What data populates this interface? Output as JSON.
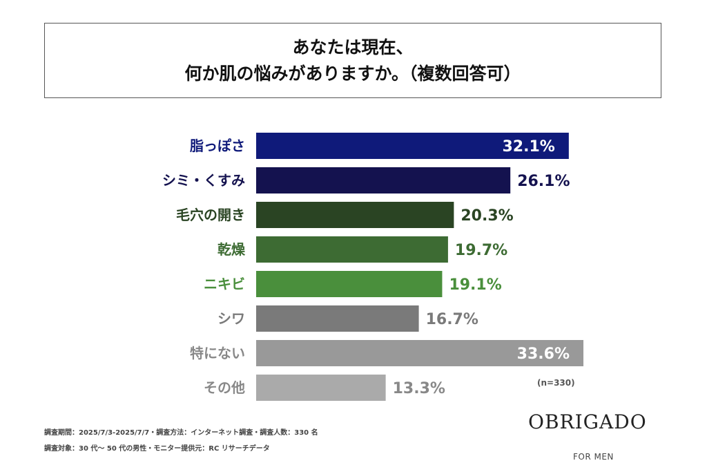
{
  "title": {
    "line1": "あなたは現在、",
    "line2": "何か肌の悩みがありますか。（複数回答可）"
  },
  "chart_data": {
    "type": "bar",
    "orientation": "horizontal",
    "categories": [
      "脂っぽさ",
      "シミ・くすみ",
      "毛穴の開き",
      "乾燥",
      "ニキビ",
      "シワ",
      "特にない",
      "その他"
    ],
    "values": [
      32.1,
      26.1,
      20.3,
      19.7,
      19.1,
      16.7,
      33.6,
      13.3
    ],
    "value_labels": [
      "32.1%",
      "26.1%",
      "20.3%",
      "19.7%",
      "19.1%",
      "16.7%",
      "33.6%",
      "13.3%"
    ],
    "bar_colors": [
      "#0f1a7a",
      "#14124f",
      "#2a4423",
      "#3d6b33",
      "#4a8f3c",
      "#7a7a7a",
      "#999999",
      "#aaaaaa"
    ],
    "label_colors": [
      "#0f1a7a",
      "#14124f",
      "#2a4423",
      "#3d6b33",
      "#4a8f3c",
      "#7a7a7a",
      "#888888",
      "#888888"
    ],
    "sample_note": "(n=330)"
  },
  "footnotes": {
    "line1": "調査期間：2025/7/3-2025/7/7・調査方法：インターネット調査・調査人数：330 名",
    "line2": "調査対象：30 代〜 50 代の男性・モニター提供元：RC リサーチデータ"
  },
  "brand": {
    "logo": "OBRIGADO",
    "tagline": "FOR MEN"
  }
}
